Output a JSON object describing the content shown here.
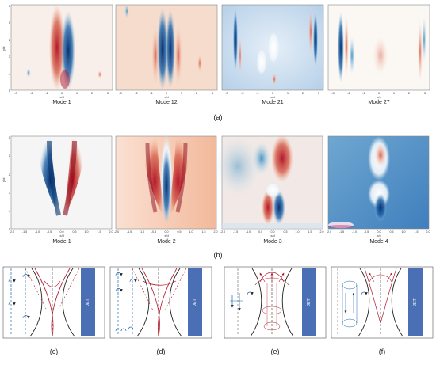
{
  "row_a": {
    "tick_labels_y": [
      "0",
      "1",
      "2",
      "3",
      "4",
      "5"
    ],
    "tick_labels_x": [
      "-3",
      "-2",
      "-1",
      "0",
      "1",
      "2",
      "3"
    ],
    "y_axis_label": "y/d",
    "x_axis_label": "x/d",
    "modes": [
      "Mode 1",
      "Mode 12",
      "Mode 21",
      "Mode 27"
    ],
    "row_label": "(a)"
  },
  "row_b": {
    "tick_labels_y": [
      "0",
      "1",
      "2",
      "3",
      "4",
      "5"
    ],
    "tick_labels_x": [
      "-2.0",
      "-1.5",
      "-1.0",
      "-0.5",
      "0.0",
      "0.5",
      "1.0",
      "1.5",
      "2.0"
    ],
    "y_axis_label": "y/d",
    "x_axis_label": "x/d",
    "modes": [
      "Mode 1",
      "Mode 2",
      "Mode 3",
      "Mode 4"
    ],
    "row_label": "(b)"
  },
  "row_c": {
    "jet_label": "JET",
    "panel_labels": [
      "(c)",
      "(d)",
      "(e)",
      "(f)"
    ]
  },
  "colors": {
    "red": "#b2182b",
    "blue": "#2166ac",
    "jet_bar": "#4a6fb5"
  }
}
